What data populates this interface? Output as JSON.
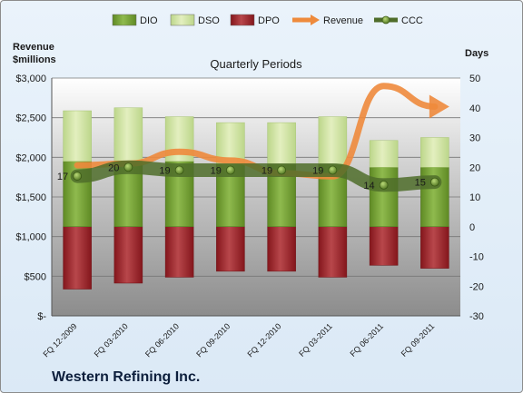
{
  "chart_data": {
    "type": "bar",
    "title": "Quarterly Periods",
    "company": "Western Refining Inc.",
    "y_left_label": [
      "Revenue",
      "$millions"
    ],
    "y_right_label": "Days",
    "y_left_ticks": [
      "$-",
      "$500",
      "$1,000",
      "$1,500",
      "$2,000",
      "$2,500",
      "$3,000"
    ],
    "y_left_range": [
      0,
      3000
    ],
    "y_right_range": [
      -30,
      50
    ],
    "categories": [
      "FQ 12-2009",
      "FQ 03-2010",
      "FQ 06-2010",
      "FQ 09-2010",
      "FQ 12-2010",
      "FQ 03-2011",
      "FQ 06-2011",
      "FQ 09-2011"
    ],
    "legend": [
      "DIO",
      "DSO",
      "DPO",
      "Revenue",
      "CCC"
    ],
    "series": [
      {
        "name": "DIO",
        "axis": "right",
        "values": [
          22,
          22,
          22,
          21,
          21,
          21,
          20,
          20
        ]
      },
      {
        "name": "DSO",
        "axis": "right",
        "values": [
          17,
          18,
          15,
          14,
          14,
          16,
          9,
          10
        ]
      },
      {
        "name": "DPO",
        "axis": "right",
        "values": [
          -21,
          -19,
          -17,
          -15,
          -15,
          -17,
          -13,
          -14
        ]
      },
      {
        "name": "Revenue",
        "axis": "left",
        "values": [
          1900,
          1920,
          2070,
          1960,
          1800,
          1760,
          2900,
          2640
        ]
      },
      {
        "name": "CCC",
        "axis": "right",
        "values": [
          17,
          20,
          19,
          19,
          19,
          19,
          14,
          15
        ]
      }
    ],
    "ccc_labels": [
      "17",
      "20",
      "19",
      "19",
      "19",
      "19",
      "14",
      "15"
    ],
    "colors": {
      "DIO": "#7ba33a",
      "DSO": "#d5e6a4",
      "DPO": "#a32a30",
      "Revenue": "#ee8a3c",
      "CCC": "#4f6d2a"
    },
    "grid": true,
    "legend_position": "top"
  }
}
